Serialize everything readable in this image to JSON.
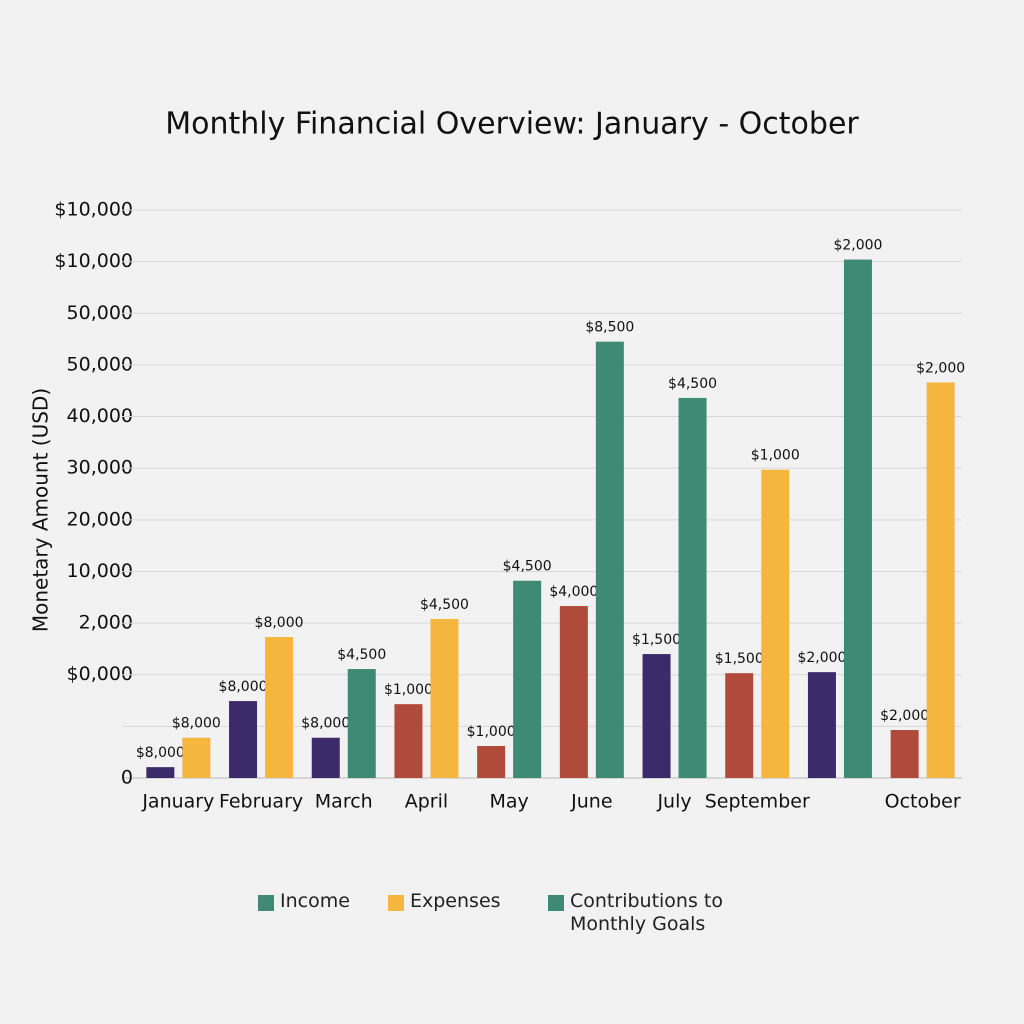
{
  "chart_data": {
    "type": "bar",
    "title": "Monthly Financial Overview: January - October",
    "y_label": "Monetary Amount (USD)",
    "categories": [
      "January",
      "February",
      "March",
      "April",
      "May",
      "June",
      "July",
      "September",
      null,
      "October"
    ],
    "series": [
      {
        "name": "Income",
        "color": "#3e8a72",
        "bar_colors": [
          "#3d2a6b",
          "#3d2a6b",
          "#3d2a6b",
          "#b04a3a",
          "#b04a3a",
          "#b04a3a",
          "#3d2a6b",
          "#b04a3a",
          "#3d2a6b",
          "#b04a3a"
        ],
        "values": [
          0.21,
          1.49,
          0.78,
          1.43,
          0.62,
          3.33,
          2.4,
          2.03,
          2.05,
          0.93
        ],
        "value_labels": [
          "$8,000",
          "$8,000",
          "$8,000",
          "$1,000",
          "$1,000",
          "$4,000",
          "$1,500",
          "$1,500",
          "$2,000",
          "$2,000"
        ]
      },
      {
        "name": "Expenses",
        "color": "#f4b63f",
        "values": [
          0.78,
          2.73,
          null,
          3.08,
          null,
          null,
          null,
          5.97,
          null,
          7.66
        ],
        "value_labels": [
          "$8,000",
          "$8,000",
          null,
          "$4,500",
          null,
          null,
          null,
          "$1,000",
          null,
          "$2,000"
        ]
      },
      {
        "name": "Contributions to Monthly Goals",
        "color": "#3e8a72",
        "values": [
          null,
          null,
          2.11,
          null,
          3.82,
          8.45,
          7.36,
          null,
          10.04,
          null
        ],
        "value_labels": [
          null,
          null,
          "$4,500",
          null,
          "$4,500",
          "$8,500",
          "$4,500",
          null,
          "$2,000",
          null
        ]
      }
    ],
    "ylim": [
      0,
      11
    ],
    "yticks": [
      {
        "value": 0,
        "label": "0"
      },
      {
        "value": 1,
        "label": null
      },
      {
        "value": 2,
        "label": "$0,000"
      },
      {
        "value": 3,
        "label": "2,000"
      },
      {
        "value": 4,
        "label": "10,000"
      },
      {
        "value": 5,
        "label": "20,000"
      },
      {
        "value": 6,
        "label": "30,000"
      },
      {
        "value": 7,
        "label": "40,000"
      },
      {
        "value": 8,
        "label": "50,000"
      },
      {
        "value": 9,
        "label": "50,000"
      },
      {
        "value": 10,
        "label": "$10,000"
      },
      {
        "value": 11,
        "label": "$10,000"
      }
    ],
    "grid": true
  }
}
